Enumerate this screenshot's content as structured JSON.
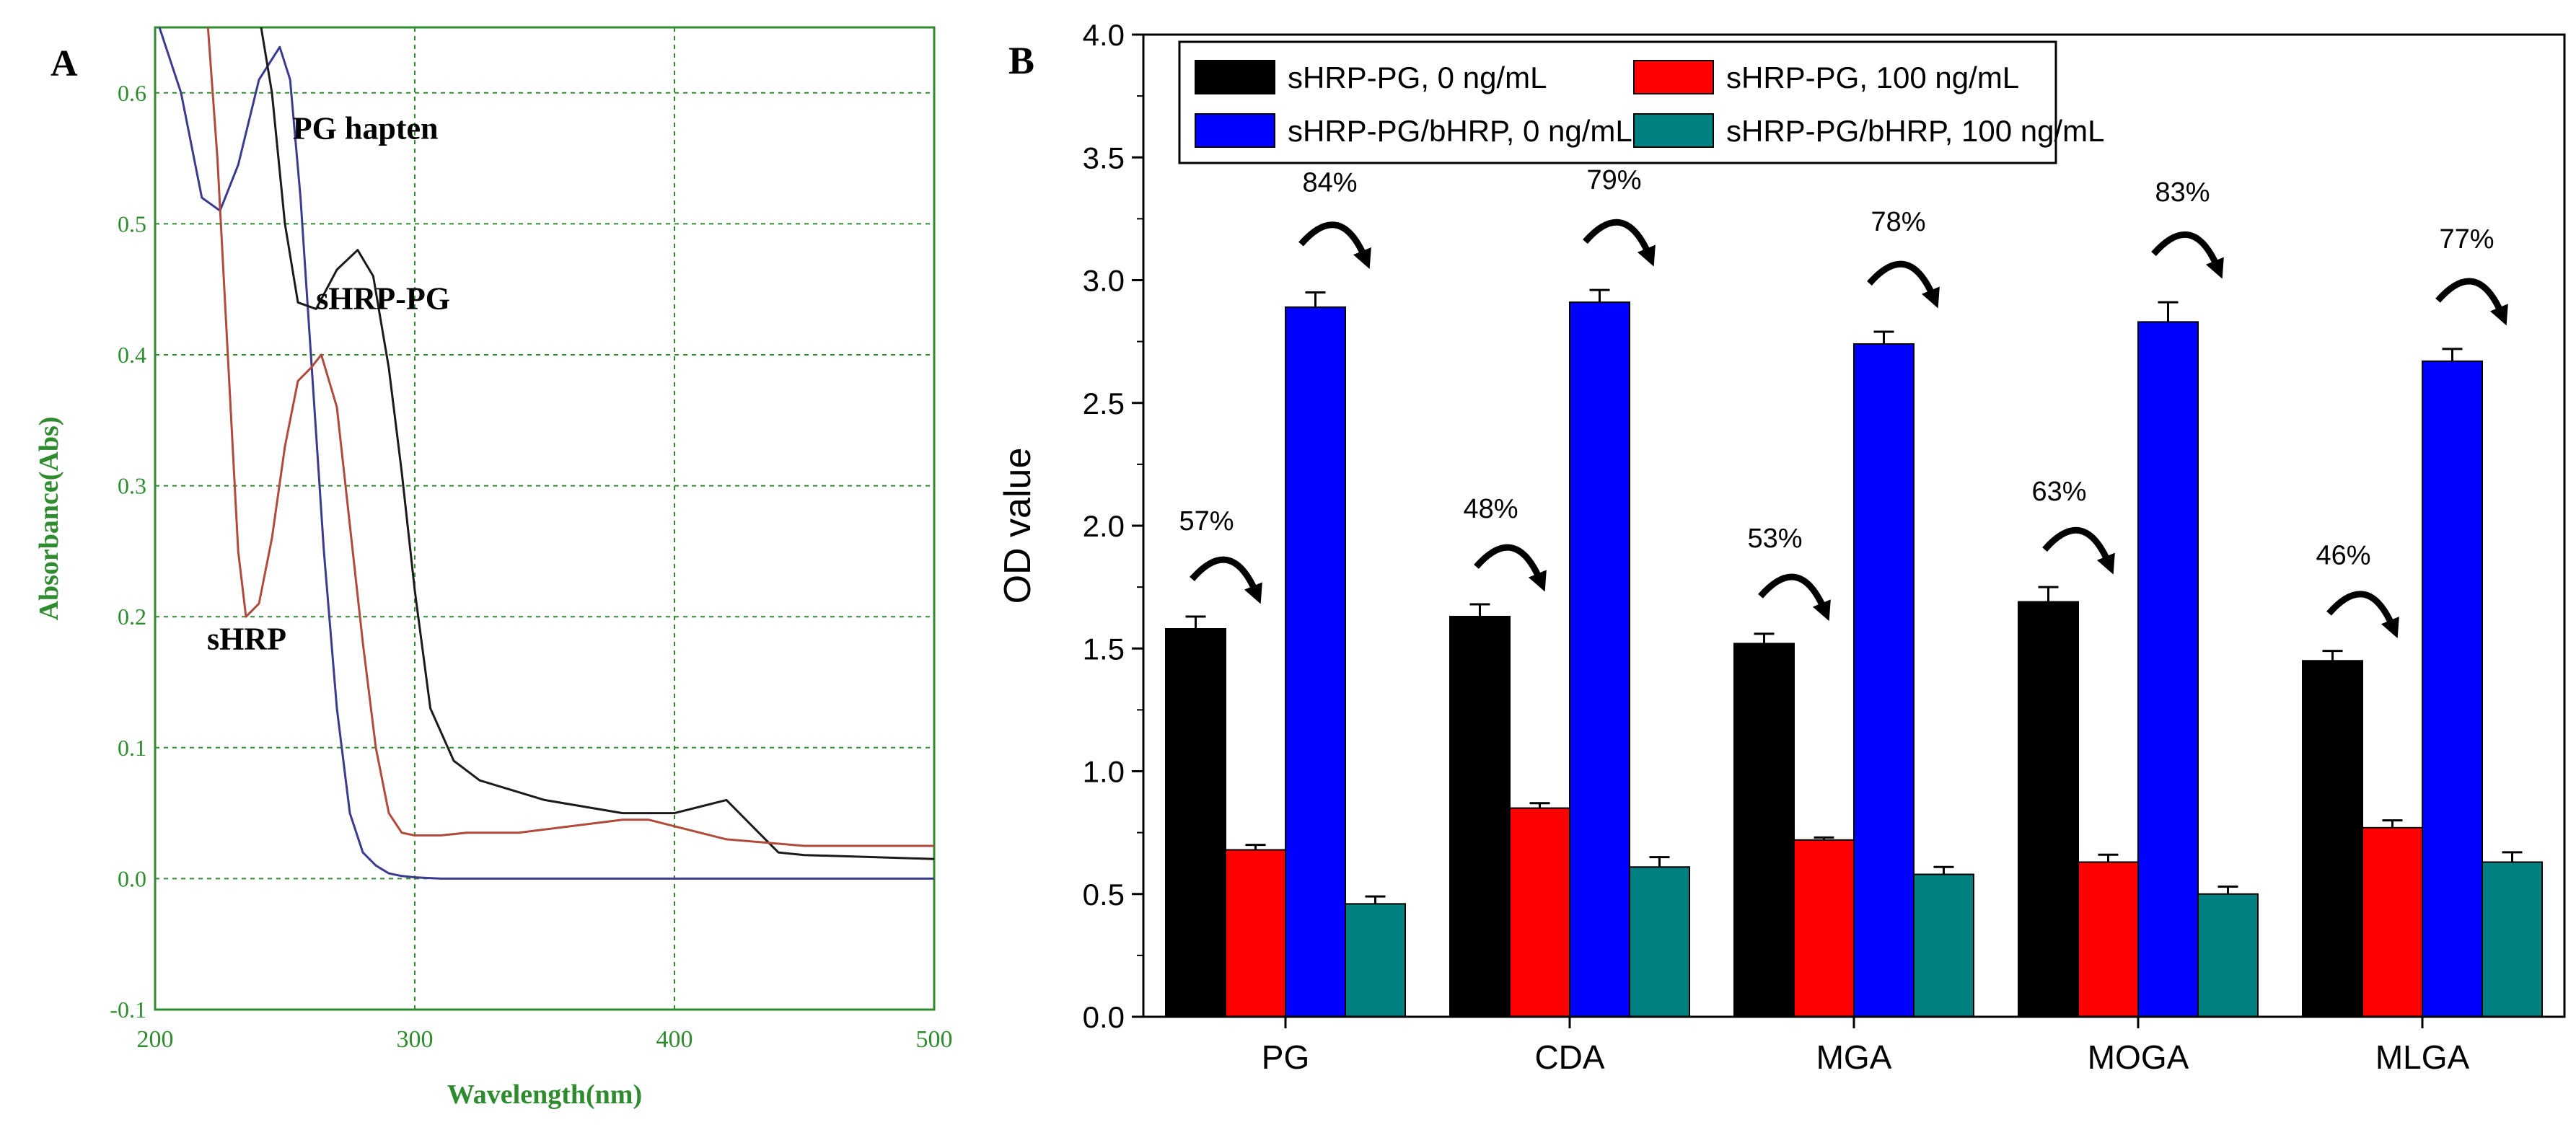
{
  "figure": {
    "panels": {
      "A": {
        "label": "A"
      },
      "B": {
        "label": "B"
      }
    }
  },
  "chart_data": [
    {
      "panel": "A",
      "type": "line",
      "xlabel": "Wavelength(nm)",
      "ylabel": "Absorbance(Abs)",
      "xlim": [
        200,
        500
      ],
      "ylim": [
        -0.1,
        0.65
      ],
      "grid": true,
      "x_ticks": [
        200,
        300,
        400,
        500
      ],
      "y_ticks": [
        -0.1,
        0.0,
        0.1,
        0.2,
        0.3,
        0.4,
        0.5,
        0.6
      ],
      "x_tick_labels": [
        "200",
        "300",
        "400",
        "500"
      ],
      "y_tick_labels": [
        "-0.1",
        "0.0",
        "0.1",
        "0.2",
        "0.3",
        "0.4",
        "0.5",
        "0.6"
      ],
      "colors": {
        "axis": "#2e8b2e",
        "grid": "#2e8b2e",
        "tick_text": "#2e8b2e"
      },
      "series": [
        {
          "name": "PG hapten",
          "color": "#3a3a8f",
          "x": [
            200,
            210,
            218,
            225,
            232,
            240,
            248,
            252,
            256,
            260,
            265,
            270,
            275,
            280,
            285,
            290,
            295,
            300,
            310,
            320,
            340,
            360,
            380,
            400,
            450,
            500
          ],
          "y": [
            0.66,
            0.6,
            0.52,
            0.51,
            0.545,
            0.61,
            0.635,
            0.61,
            0.52,
            0.4,
            0.25,
            0.13,
            0.05,
            0.02,
            0.01,
            0.004,
            0.002,
            0.001,
            0.0,
            0.0,
            0.0,
            0.0,
            0.0,
            0.0,
            0.0,
            0.0
          ]
        },
        {
          "name": "sHRP-PG",
          "color": "#1a1a1a",
          "x": [
            200,
            225,
            232,
            240,
            245,
            250,
            255,
            262,
            270,
            278,
            284,
            290,
            295,
            300,
            306,
            315,
            325,
            350,
            380,
            400,
            410,
            420,
            430,
            440,
            450,
            500
          ],
          "y": [
            0.66,
            0.66,
            0.66,
            0.66,
            0.6,
            0.5,
            0.44,
            0.435,
            0.465,
            0.48,
            0.46,
            0.39,
            0.31,
            0.22,
            0.13,
            0.09,
            0.075,
            0.06,
            0.05,
            0.05,
            0.055,
            0.06,
            0.04,
            0.02,
            0.018,
            0.015
          ]
        },
        {
          "name": "sHRP",
          "color": "#b04a3a",
          "x": [
            220,
            224,
            228,
            232,
            235,
            240,
            245,
            250,
            255,
            260,
            264,
            270,
            275,
            280,
            285,
            290,
            295,
            300,
            310,
            320,
            340,
            360,
            380,
            390,
            400,
            420,
            450,
            500
          ],
          "y": [
            0.66,
            0.55,
            0.4,
            0.25,
            0.2,
            0.21,
            0.26,
            0.33,
            0.38,
            0.39,
            0.4,
            0.36,
            0.27,
            0.18,
            0.1,
            0.05,
            0.035,
            0.033,
            0.033,
            0.035,
            0.035,
            0.04,
            0.045,
            0.045,
            0.04,
            0.03,
            0.025,
            0.025
          ]
        }
      ],
      "annotations": [
        {
          "text": "PG hapten",
          "x": 253,
          "y": 0.565
        },
        {
          "text": "sHRP-PG",
          "x": 262,
          "y": 0.435
        },
        {
          "text": "sHRP",
          "x": 220,
          "y": 0.175
        }
      ]
    },
    {
      "panel": "B",
      "type": "bar",
      "ylabel": "OD value",
      "xlabel": "",
      "ylim": [
        0,
        4.0
      ],
      "y_ticks": [
        0.0,
        0.5,
        1.0,
        1.5,
        2.0,
        2.5,
        3.0,
        3.5,
        4.0
      ],
      "y_tick_labels": [
        "0.0",
        "0.5",
        "1.0",
        "1.5",
        "2.0",
        "2.5",
        "3.0",
        "3.5",
        "4.0"
      ],
      "categories": [
        "PG",
        "CDA",
        "MGA",
        "MOGA",
        "MLGA"
      ],
      "legend_placement": "top",
      "series": [
        {
          "name": "sHRP-PG, 0 ng/mL",
          "color": "#000000",
          "values": [
            1.58,
            1.63,
            1.52,
            1.69,
            1.45
          ],
          "errors": [
            0.05,
            0.05,
            0.04,
            0.06,
            0.04
          ]
        },
        {
          "name": "sHRP-PG, 100 ng/mL",
          "color": "#ff0000",
          "values": [
            0.68,
            0.85,
            0.72,
            0.63,
            0.77
          ],
          "errors": [
            0.02,
            0.02,
            0.01,
            0.03,
            0.03
          ]
        },
        {
          "name": "sHRP-PG/bHRP, 0 ng/mL",
          "color": "#0000ff",
          "values": [
            2.89,
            2.91,
            2.74,
            2.83,
            2.67
          ],
          "errors": [
            0.06,
            0.05,
            0.05,
            0.08,
            0.05
          ]
        },
        {
          "name": "sHRP-PG/bHRP, 100 ng/mL",
          "color": "#008080",
          "values": [
            0.46,
            0.61,
            0.58,
            0.5,
            0.63
          ],
          "errors": [
            0.03,
            0.04,
            0.03,
            0.03,
            0.04
          ]
        }
      ],
      "inhibition_labels": [
        {
          "category": "PG",
          "low": "57%",
          "high": "84%"
        },
        {
          "category": "CDA",
          "low": "48%",
          "high": "79%"
        },
        {
          "category": "MGA",
          "low": "53%",
          "high": "78%"
        },
        {
          "category": "MOGA",
          "low": "63%",
          "high": "83%"
        },
        {
          "category": "MLGA",
          "low": "46%",
          "high": "77%"
        }
      ]
    }
  ]
}
